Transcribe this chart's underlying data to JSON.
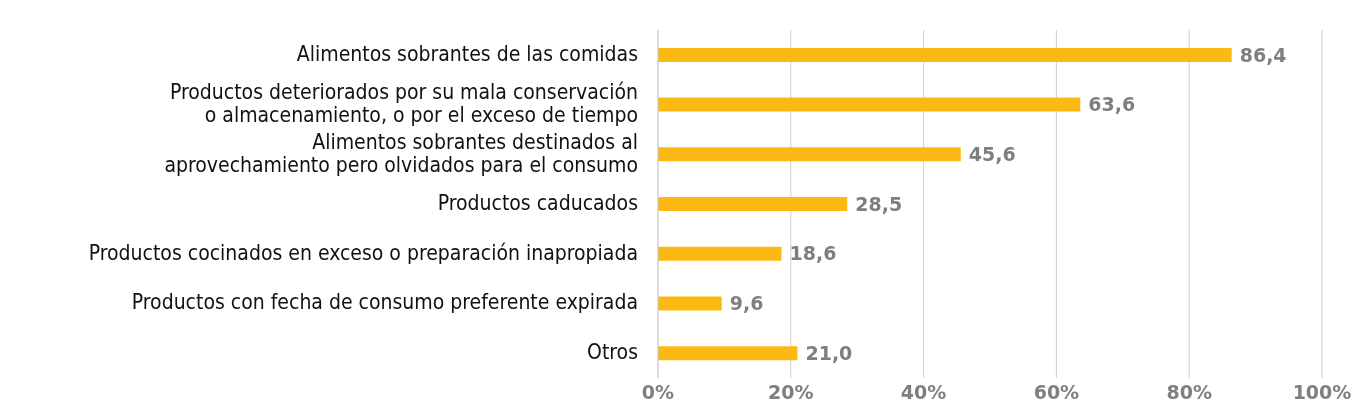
{
  "chart_data": {
    "type": "bar",
    "orientation": "horizontal",
    "categories": [
      "Alimentos sobrantes de las comidas",
      "Productos deteriorados por su mala conservación\no almacenamiento, o por el exceso de tiempo",
      "Alimentos sobrantes destinados al\naprovechamiento pero olvidados para el consumo",
      "Productos caducados",
      "Productos cocinados en exceso o preparación inapropiada",
      "Productos con fecha de consumo preferente expirada",
      "Otros"
    ],
    "values": [
      86.4,
      63.6,
      45.6,
      28.5,
      18.6,
      9.6,
      21.0
    ],
    "value_labels": [
      "86,4",
      "63,6",
      "45,6",
      "28,5",
      "18,6",
      "9,6",
      "21,0"
    ],
    "color": "#fdb913",
    "xlim": [
      0,
      100
    ],
    "xticks": [
      {
        "value": 0,
        "label": "0%"
      },
      {
        "value": 20,
        "label": "20%"
      },
      {
        "value": 40,
        "label": "40%"
      },
      {
        "value": 60,
        "label": "60%"
      },
      {
        "value": 80,
        "label": "80%"
      },
      {
        "value": 100,
        "label": "100%"
      }
    ],
    "grid": "x",
    "legend": false
  }
}
